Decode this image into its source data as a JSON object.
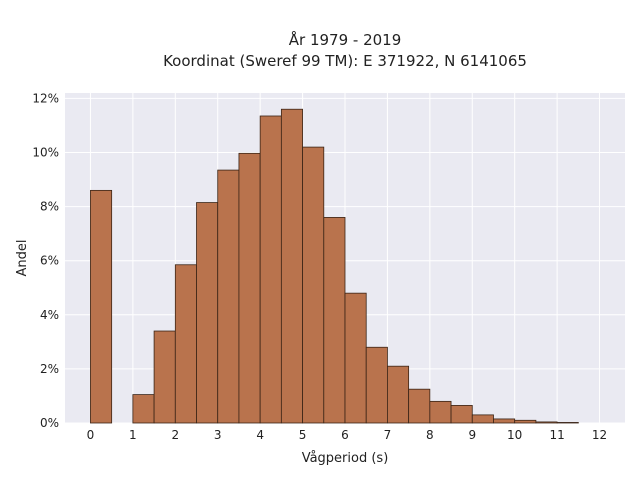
{
  "chart_data": {
    "type": "bar",
    "title_lines": [
      "År 1979 - 2019",
      "Koordinat (Sweref 99 TM): E 371922, N 6141065"
    ],
    "xlabel": "Vågperiod (s)",
    "ylabel": "Andel",
    "xlim": [
      -0.6,
      12.6
    ],
    "ylim": [
      0,
      12.2
    ],
    "x_ticks": [
      0,
      1,
      2,
      3,
      4,
      5,
      6,
      7,
      8,
      9,
      10,
      11,
      12
    ],
    "x_tick_labels": [
      "0",
      "1",
      "2",
      "3",
      "4",
      "5",
      "6",
      "7",
      "8",
      "9",
      "10",
      "11",
      "12"
    ],
    "y_ticks": [
      0,
      2,
      4,
      6,
      8,
      10,
      12
    ],
    "y_tick_labels": [
      "0%",
      "2%",
      "4%",
      "6%",
      "8%",
      "10%",
      "12%"
    ],
    "grid": true,
    "bin_width": 0.5,
    "bins_left_edge": [
      0,
      1,
      1.5,
      2,
      2.5,
      3,
      3.5,
      4,
      4.5,
      5,
      5.5,
      6,
      6.5,
      7,
      7.5,
      8,
      8.5,
      9,
      9.5,
      10,
      10.5,
      11
    ],
    "values_percent": [
      8.6,
      1.05,
      3.4,
      5.85,
      8.15,
      9.35,
      9.97,
      11.35,
      11.6,
      10.2,
      7.6,
      4.8,
      2.8,
      2.1,
      1.25,
      0.8,
      0.65,
      0.3,
      0.15,
      0.1,
      0.04,
      0.02
    ],
    "colors": {
      "bar_fill": "#b9734d",
      "bar_edge": "#3a2416",
      "plot_background": "#eaeaf2",
      "grid": "#ffffff"
    }
  }
}
